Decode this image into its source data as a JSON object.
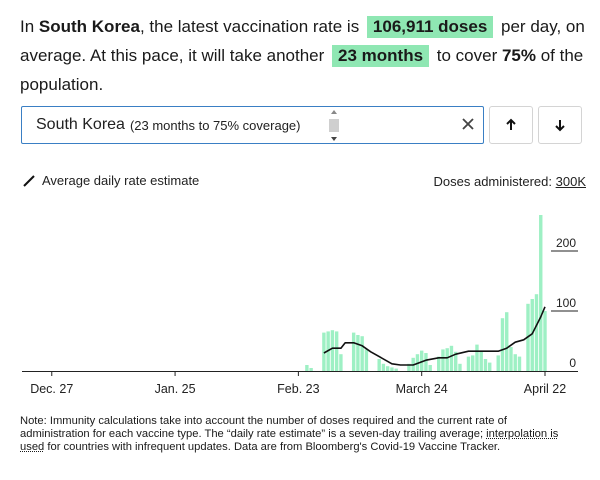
{
  "headline": {
    "prefix": "In ",
    "country": "South Korea",
    "mid1": ", the latest vaccination rate is ",
    "rate": "106,911 doses",
    "mid2": " per day, on average. At this pace, it will take another ",
    "duration": "23 months",
    "mid3": " to cover ",
    "coverage": "75%",
    "suffix": " of the population."
  },
  "selector": {
    "country": "South Korea",
    "note": "(23 months to 75% coverage)",
    "clear_icon": "close-icon",
    "up_icon": "arrow-up-icon",
    "down_icon": "arrow-down-icon"
  },
  "legend": {
    "line_label": "Average daily rate estimate",
    "bars_label": "Doses administered:",
    "bars_unit": "300K"
  },
  "colors": {
    "bar": "#9ef0c4",
    "line": "#111111",
    "highlight": "#8fe7b3",
    "input_border": "#3a7fc4"
  },
  "chart_data": {
    "type": "bar",
    "x_start": "2021-12-20",
    "x_end": "2022-04-22",
    "xticks": [
      {
        "date": "2021-12-27",
        "label": "Dec. 27"
      },
      {
        "date": "2022-01-25",
        "label": "Jan. 25"
      },
      {
        "date": "2022-02-23",
        "label": "Feb. 23"
      },
      {
        "date": "2022-03-24",
        "label": "March 24"
      },
      {
        "date": "2022-04-22",
        "label": "April 22"
      }
    ],
    "yticks": [
      0,
      100,
      200
    ],
    "ylim": [
      0,
      300
    ],
    "y_unit": "thousand doses",
    "series": [
      {
        "kind": "bar",
        "values": [
          [
            "2022-02-25",
            10
          ],
          [
            "2022-02-26",
            5
          ],
          [
            "2022-03-01",
            64
          ],
          [
            "2022-03-02",
            66
          ],
          [
            "2022-03-03",
            68
          ],
          [
            "2022-03-04",
            66
          ],
          [
            "2022-03-05",
            28
          ],
          [
            "2022-03-08",
            64
          ],
          [
            "2022-03-09",
            60
          ],
          [
            "2022-03-10",
            58
          ],
          [
            "2022-03-11",
            36
          ],
          [
            "2022-03-14",
            20
          ],
          [
            "2022-03-15",
            12
          ],
          [
            "2022-03-16",
            8
          ],
          [
            "2022-03-17",
            6
          ],
          [
            "2022-03-18",
            4
          ],
          [
            "2022-03-21",
            12
          ],
          [
            "2022-03-22",
            22
          ],
          [
            "2022-03-23",
            28
          ],
          [
            "2022-03-24",
            34
          ],
          [
            "2022-03-25",
            30
          ],
          [
            "2022-03-26",
            10
          ],
          [
            "2022-03-28",
            24
          ],
          [
            "2022-03-29",
            36
          ],
          [
            "2022-03-30",
            38
          ],
          [
            "2022-03-31",
            42
          ],
          [
            "2022-04-01",
            32
          ],
          [
            "2022-04-02",
            12
          ],
          [
            "2022-04-04",
            24
          ],
          [
            "2022-04-05",
            26
          ],
          [
            "2022-04-06",
            44
          ],
          [
            "2022-04-07",
            32
          ],
          [
            "2022-04-08",
            20
          ],
          [
            "2022-04-09",
            14
          ],
          [
            "2022-04-11",
            26
          ],
          [
            "2022-04-12",
            88
          ],
          [
            "2022-04-13",
            98
          ],
          [
            "2022-04-14",
            40
          ],
          [
            "2022-04-15",
            28
          ],
          [
            "2022-04-16",
            24
          ],
          [
            "2022-04-18",
            112
          ],
          [
            "2022-04-19",
            120
          ],
          [
            "2022-04-20",
            128
          ],
          [
            "2022-04-21",
            260
          ],
          [
            "2022-04-22",
            100
          ]
        ]
      },
      {
        "kind": "line",
        "name": "Average daily rate estimate",
        "values": [
          [
            "2022-03-01",
            30
          ],
          [
            "2022-03-03",
            38
          ],
          [
            "2022-03-05",
            38
          ],
          [
            "2022-03-06",
            47
          ],
          [
            "2022-03-08",
            47
          ],
          [
            "2022-03-10",
            42
          ],
          [
            "2022-03-12",
            32
          ],
          [
            "2022-03-14",
            24
          ],
          [
            "2022-03-17",
            12
          ],
          [
            "2022-03-19",
            10
          ],
          [
            "2022-03-22",
            10
          ],
          [
            "2022-03-25",
            18
          ],
          [
            "2022-03-28",
            22
          ],
          [
            "2022-03-30",
            22
          ],
          [
            "2022-04-01",
            28
          ],
          [
            "2022-04-04",
            33
          ],
          [
            "2022-04-07",
            33
          ],
          [
            "2022-04-11",
            33
          ],
          [
            "2022-04-13",
            38
          ],
          [
            "2022-04-15",
            48
          ],
          [
            "2022-04-17",
            52
          ],
          [
            "2022-04-19",
            62
          ],
          [
            "2022-04-21",
            90
          ],
          [
            "2022-04-22",
            107
          ]
        ]
      }
    ]
  },
  "footnote": {
    "text1": "Note: Immunity calculations take into account the number of doses required and the current rate of administration for each vaccine type. The “daily rate estimate” is a seven-day trailing average; ",
    "link": "interpolation is used",
    "text2": " for countries with infrequent updates. Data are from Bloomberg's Covid-19 Vaccine Tracker."
  }
}
